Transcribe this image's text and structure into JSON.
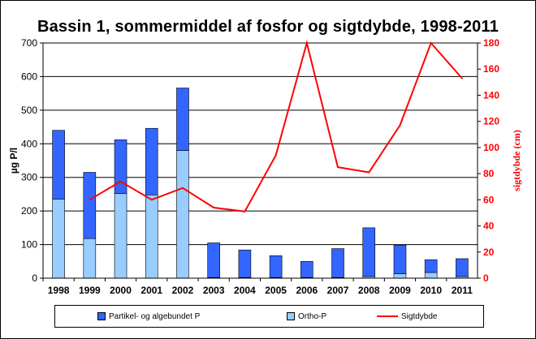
{
  "chart_data": {
    "type": "bar",
    "title": "Bassin 1, sommermiddel  af fosfor  og sigtdybde,  1998-2011",
    "categories": [
      "1998",
      "1999",
      "2000",
      "2001",
      "2002",
      "2003",
      "2004",
      "2005",
      "2006",
      "2007",
      "2008",
      "2009",
      "2010",
      "2011"
    ],
    "ylabel": "µg P/l",
    "ylim": [
      0,
      700
    ],
    "yticks": [
      "0",
      "100",
      "200",
      "300",
      "400",
      "500",
      "600",
      "700"
    ],
    "y2label": "sigtdybde (cm)",
    "y2lim": [
      0,
      180
    ],
    "y2ticks": [
      "0",
      "20",
      "40",
      "60",
      "80",
      "100",
      "120",
      "140",
      "160",
      "180"
    ],
    "series": [
      {
        "name": "Ortho-P",
        "type": "bar-stacked",
        "color": "#99ccff",
        "values": [
          235,
          118,
          252,
          248,
          380,
          2,
          2,
          2,
          2,
          2,
          5,
          13,
          17,
          5
        ]
      },
      {
        "name": "Partikel- og algebundet P",
        "type": "bar-stacked",
        "color": "#3366ff",
        "values": [
          205,
          197,
          160,
          198,
          186,
          103,
          82,
          65,
          48,
          86,
          145,
          85,
          38,
          53
        ]
      },
      {
        "name": "Sigtdybde",
        "type": "line",
        "axis": "right",
        "color": "#ff0000",
        "values": [
          null,
          60,
          74,
          60,
          69,
          54,
          51,
          94,
          180,
          85,
          81,
          117,
          180,
          153
        ]
      }
    ],
    "legend": [
      "Partikel- og algebundet P",
      "Ortho-P",
      "Sigtdybde"
    ],
    "legend_position": "bottom",
    "grid": true
  }
}
